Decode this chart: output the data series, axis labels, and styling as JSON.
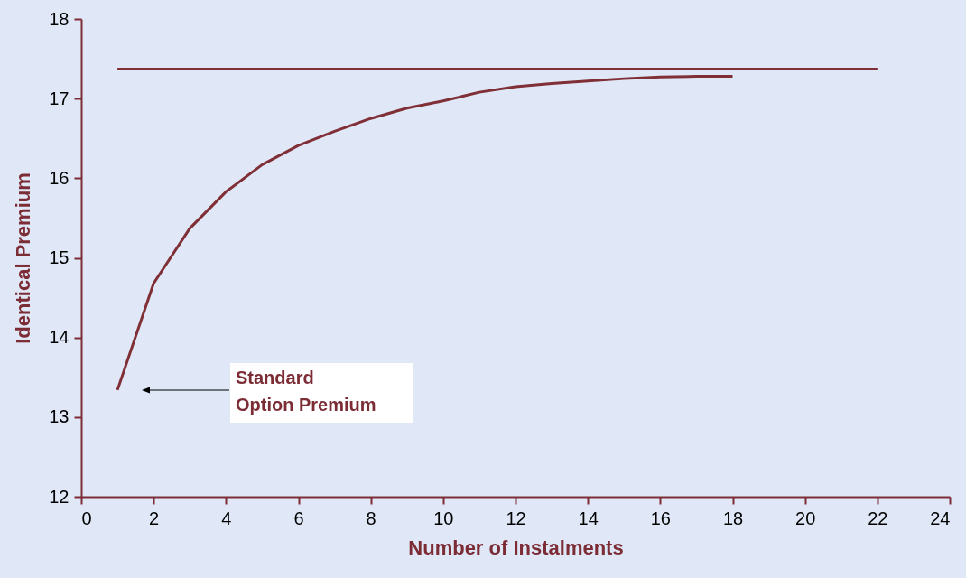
{
  "chart_data": {
    "type": "line",
    "xlabel": "Number of Instalments",
    "ylabel": "Identical Premium",
    "xlim": [
      0,
      24
    ],
    "xticks": [
      0,
      2,
      4,
      6,
      8,
      10,
      12,
      14,
      16,
      18,
      20,
      22,
      24
    ],
    "ylim": [
      12,
      18
    ],
    "yticks": [
      12,
      13,
      14,
      15,
      16,
      17,
      18
    ],
    "grid": false,
    "marker": "none",
    "line_style": "solid",
    "series": [
      {
        "x": [
          1,
          2,
          3,
          4,
          5,
          6,
          7,
          8,
          9,
          10,
          11,
          12,
          13,
          14,
          15,
          16,
          17,
          18
        ],
        "values": [
          13.34,
          14.68,
          15.37,
          15.83,
          16.17,
          16.41,
          16.59,
          16.75,
          16.88,
          16.97,
          17.08,
          17.15,
          17.19,
          17.22,
          17.25,
          17.27,
          17.28,
          17.28
        ],
        "color": "#7f2f35"
      },
      {
        "x": [
          1,
          22
        ],
        "values": [
          17.37,
          17.37
        ],
        "color": "#7f2f35"
      }
    ],
    "annotations": [
      "Standard\nOption Premium"
    ]
  }
}
